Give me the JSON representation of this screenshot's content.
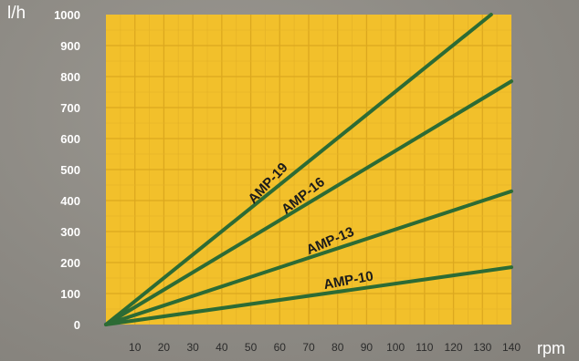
{
  "chart_data": {
    "type": "line",
    "ylabel": "l/h",
    "xlabel": "rpm",
    "xlim": [
      0,
      140
    ],
    "ylim": [
      0,
      1000
    ],
    "x_ticks": [
      "10",
      "20",
      "30",
      "40",
      "50",
      "60",
      "70",
      "80",
      "90",
      "100",
      "110",
      "120",
      "130",
      "140"
    ],
    "y_ticks": [
      "0",
      "100",
      "200",
      "300",
      "400",
      "500",
      "600",
      "700",
      "800",
      "900",
      "1000"
    ],
    "grid": true,
    "plot_color": "#f2c02b",
    "line_color": "#2c6b35",
    "series": [
      {
        "name": "AMP-19",
        "x": [
          0,
          133
        ],
        "y": [
          0,
          1000
        ]
      },
      {
        "name": "AMP-16",
        "x": [
          0,
          140
        ],
        "y": [
          0,
          785
        ]
      },
      {
        "name": "AMP-13",
        "x": [
          0,
          140
        ],
        "y": [
          0,
          430
        ]
      },
      {
        "name": "AMP-10",
        "x": [
          0,
          140
        ],
        "y": [
          0,
          185
        ]
      }
    ]
  }
}
